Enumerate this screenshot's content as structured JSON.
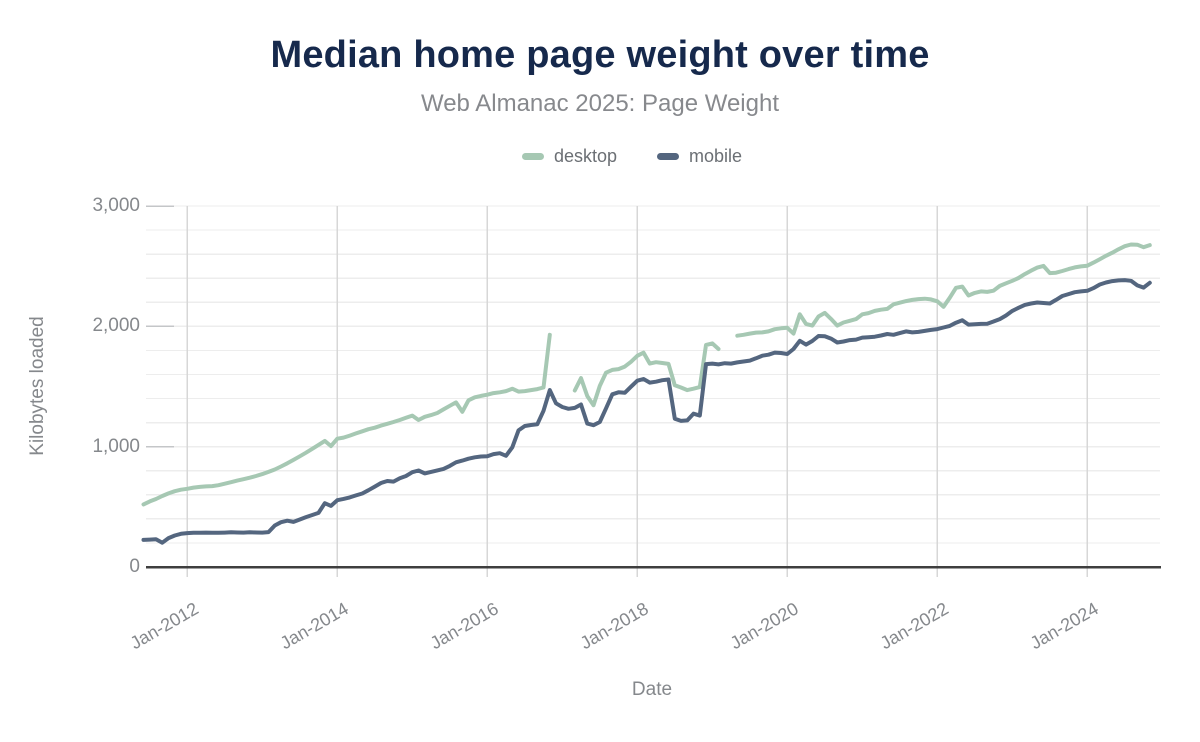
{
  "page": {
    "title": "Median home page weight over time",
    "subtitle": "Web Almanac 2025: Page Weight"
  },
  "colors": {
    "background": "#ffffff",
    "title_text": "#16294c",
    "subtitle_text": "#87898d",
    "axis_text": "#85888c",
    "legend_text": "#6b6f74",
    "grid_minor": "#ededed",
    "grid_vertical": "#d7d7d7",
    "tick_stub": "#c4c6c8",
    "axis_line": "#3f3f3f",
    "desktop_line": "#a6c8b3",
    "mobile_line": "#54667f"
  },
  "chart_data": {
    "type": "line",
    "title": "Median home page weight over time",
    "subtitle": "Web Almanac 2025: Page Weight",
    "xlabel": "Date",
    "ylabel": "Kilobytes loaded",
    "ylim": [
      0,
      3000
    ],
    "y_major_ticks": [
      0,
      1000,
      2000,
      3000
    ],
    "y_tick_labels": [
      "0",
      "1,000",
      "2,000",
      "3,000"
    ],
    "y_minor_step": 200,
    "grid": true,
    "legend_position": "top",
    "x_tick_labels": [
      "Jan-2012",
      "Jan-2014",
      "Jan-2016",
      "Jan-2018",
      "Jan-2020",
      "Jan-2022",
      "Jan-2024"
    ],
    "x_start": "2011-06",
    "x_end": "2024-11",
    "x_interval": "month",
    "units": "KB",
    "series": [
      {
        "name": "desktop",
        "color": "#a6c8b3",
        "values": [
          520,
          545,
          565,
          590,
          612,
          630,
          642,
          650,
          660,
          666,
          670,
          672,
          680,
          692,
          705,
          718,
          730,
          742,
          756,
          772,
          790,
          810,
          835,
          862,
          890,
          920,
          950,
          982,
          1015,
          1048,
          1005,
          1066,
          1075,
          1092,
          1110,
          1128,
          1145,
          1158,
          1175,
          1190,
          1205,
          1222,
          1240,
          1258,
          1222,
          1248,
          1262,
          1280,
          1310,
          1340,
          1368,
          1290,
          1385,
          1410,
          1422,
          1432,
          1445,
          1452,
          1462,
          1482,
          1458,
          1462,
          1470,
          1478,
          1492,
          1930,
          null,
          null,
          null,
          1467,
          1570,
          1420,
          1345,
          1505,
          1615,
          1638,
          1645,
          1665,
          1705,
          1755,
          1782,
          1690,
          1702,
          1695,
          1688,
          1510,
          1492,
          1470,
          1482,
          1495,
          1845,
          1858,
          1812,
          null,
          null,
          1922,
          1930,
          1940,
          1948,
          1950,
          1958,
          1976,
          1984,
          1988,
          1940,
          2100,
          2020,
          2006,
          2082,
          2112,
          2062,
          2006,
          2032,
          2046,
          2060,
          2100,
          2110,
          2128,
          2138,
          2145,
          2183,
          2196,
          2210,
          2220,
          2226,
          2230,
          2224,
          2208,
          2162,
          2238,
          2320,
          2330,
          2256,
          2278,
          2290,
          2286,
          2296,
          2336,
          2358,
          2378,
          2402,
          2434,
          2462,
          2488,
          2502,
          2442,
          2446,
          2460,
          2476,
          2490,
          2498,
          2504,
          2530,
          2558,
          2586,
          2612,
          2640,
          2666,
          2680,
          2678,
          2658,
          2675
        ]
      },
      {
        "name": "mobile",
        "color": "#54667f",
        "values": [
          225,
          228,
          230,
          202,
          240,
          262,
          276,
          282,
          285,
          284,
          286,
          285,
          284,
          286,
          288,
          287,
          286,
          288,
          287,
          286,
          290,
          345,
          372,
          385,
          375,
          395,
          415,
          432,
          450,
          530,
          508,
          555,
          566,
          578,
          595,
          611,
          638,
          668,
          698,
          715,
          710,
          738,
          756,
          788,
          802,
          778,
          790,
          803,
          815,
          840,
          870,
          884,
          900,
          912,
          918,
          920,
          938,
          946,
          924,
          995,
          1135,
          1172,
          1180,
          1186,
          1298,
          1470,
          1360,
          1330,
          1315,
          1322,
          1350,
          1192,
          1178,
          1205,
          1318,
          1435,
          1452,
          1448,
          1498,
          1548,
          1562,
          1532,
          1540,
          1552,
          1558,
          1232,
          1214,
          1218,
          1274,
          1258,
          1686,
          1690,
          1684,
          1694,
          1690,
          1700,
          1708,
          1715,
          1734,
          1756,
          1764,
          1782,
          1778,
          1770,
          1812,
          1880,
          1848,
          1878,
          1920,
          1918,
          1898,
          1866,
          1874,
          1886,
          1890,
          1906,
          1910,
          1914,
          1924,
          1936,
          1930,
          1944,
          1958,
          1950,
          1954,
          1962,
          1970,
          1977,
          1990,
          2004,
          2030,
          2050,
          2014,
          2018,
          2020,
          2022,
          2040,
          2060,
          2090,
          2128,
          2154,
          2178,
          2190,
          2198,
          2194,
          2190,
          2220,
          2252,
          2268,
          2284,
          2290,
          2295,
          2318,
          2348,
          2364,
          2376,
          2382,
          2384,
          2378,
          2340,
          2322,
          2362
        ]
      }
    ]
  }
}
